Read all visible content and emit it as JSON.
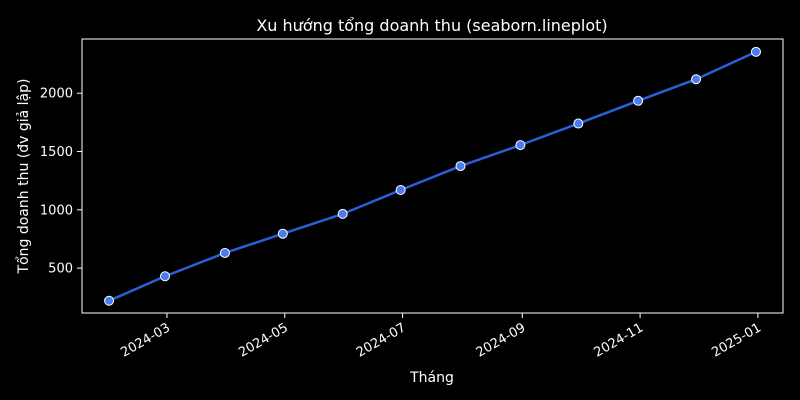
{
  "chart_data": {
    "type": "line",
    "title": "Xu hướng tổng doanh thu (seaborn.lineplot)",
    "xlabel": "Tháng",
    "ylabel": "Tổng doanh thu (đv giả lập)",
    "x": [
      "2024-01-31",
      "2024-02-29",
      "2024-03-31",
      "2024-04-30",
      "2024-05-31",
      "2024-06-30",
      "2024-07-31",
      "2024-08-31",
      "2024-09-30",
      "2024-10-31",
      "2024-11-30",
      "2024-12-31"
    ],
    "series": [
      {
        "name": "",
        "values": [
          220,
          430,
          630,
          795,
          965,
          1170,
          1375,
          1555,
          1740,
          1935,
          2120,
          2355
        ]
      }
    ],
    "xlim": [
      "2024-01-17",
      "2025-01-14"
    ],
    "ylim": [
      115,
      2465
    ],
    "xticks": [
      "2024-03",
      "2024-05",
      "2024-07",
      "2024-09",
      "2024-11",
      "2025-01"
    ],
    "yticks": [
      500,
      1000,
      1500,
      2000
    ],
    "grid": false,
    "colors": {
      "line": "#2b5fd9",
      "marker_fill": "#4a7cf0",
      "marker_edge": "#ffffff",
      "background": "#000000",
      "text": "#ffffff"
    }
  }
}
